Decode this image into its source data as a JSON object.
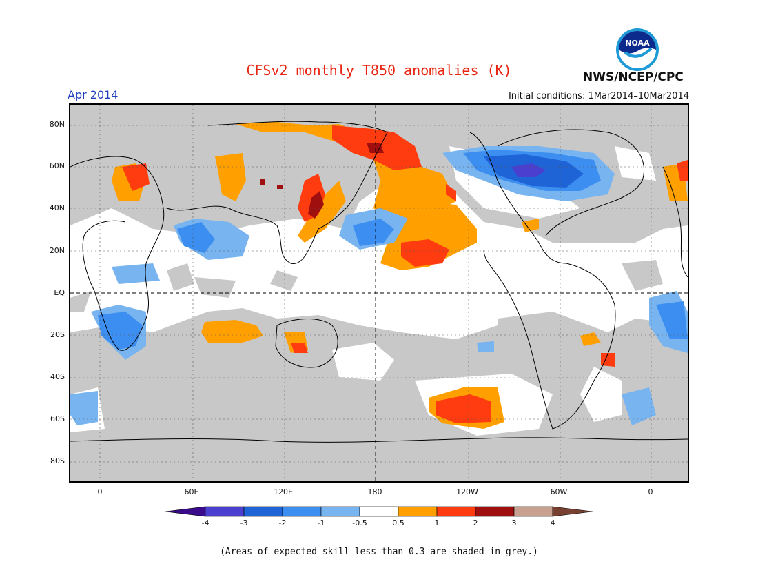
{
  "title": "CFSv2 monthly T850 anomalies (K)",
  "month_label": "Apr 2014",
  "initial_conditions": "Initial conditions: 1Mar2014–10Mar2014",
  "agency": "NWS/NCEP/CPC",
  "logo_text": "NOAA",
  "lat_ticks": [
    "80N",
    "60N",
    "40N",
    "20N",
    "EQ",
    "20S",
    "40S",
    "60S",
    "80S"
  ],
  "lon_ticks": [
    "0",
    "60E",
    "120E",
    "180",
    "120W",
    "60W",
    "0"
  ],
  "colorbar": {
    "labels": [
      "-4",
      "-3",
      "-2",
      "-1",
      "-0.5",
      "0.5",
      "1",
      "2",
      "3",
      "4"
    ],
    "colors": [
      "#3a0c8c",
      "#4b3fcf",
      "#1e64d7",
      "#3c8ff0",
      "#78b4f0",
      "#ffffff",
      "#ffa000",
      "#ff3c0f",
      "#a00f0f",
      "#c8a090",
      "#784030"
    ]
  },
  "footnote": "(Areas of expected skill less than 0.3 are shaded in grey.)",
  "map_colors": {
    "grey": "#c8c8c8",
    "white": "#ffffff",
    "orange": "#ffa000",
    "red": "#ff3c0f",
    "darkred": "#a00f0f",
    "lightblue": "#78b4f0",
    "blue": "#3c8ff0",
    "midblue": "#1e64d7",
    "purple": "#4b3fcf"
  }
}
